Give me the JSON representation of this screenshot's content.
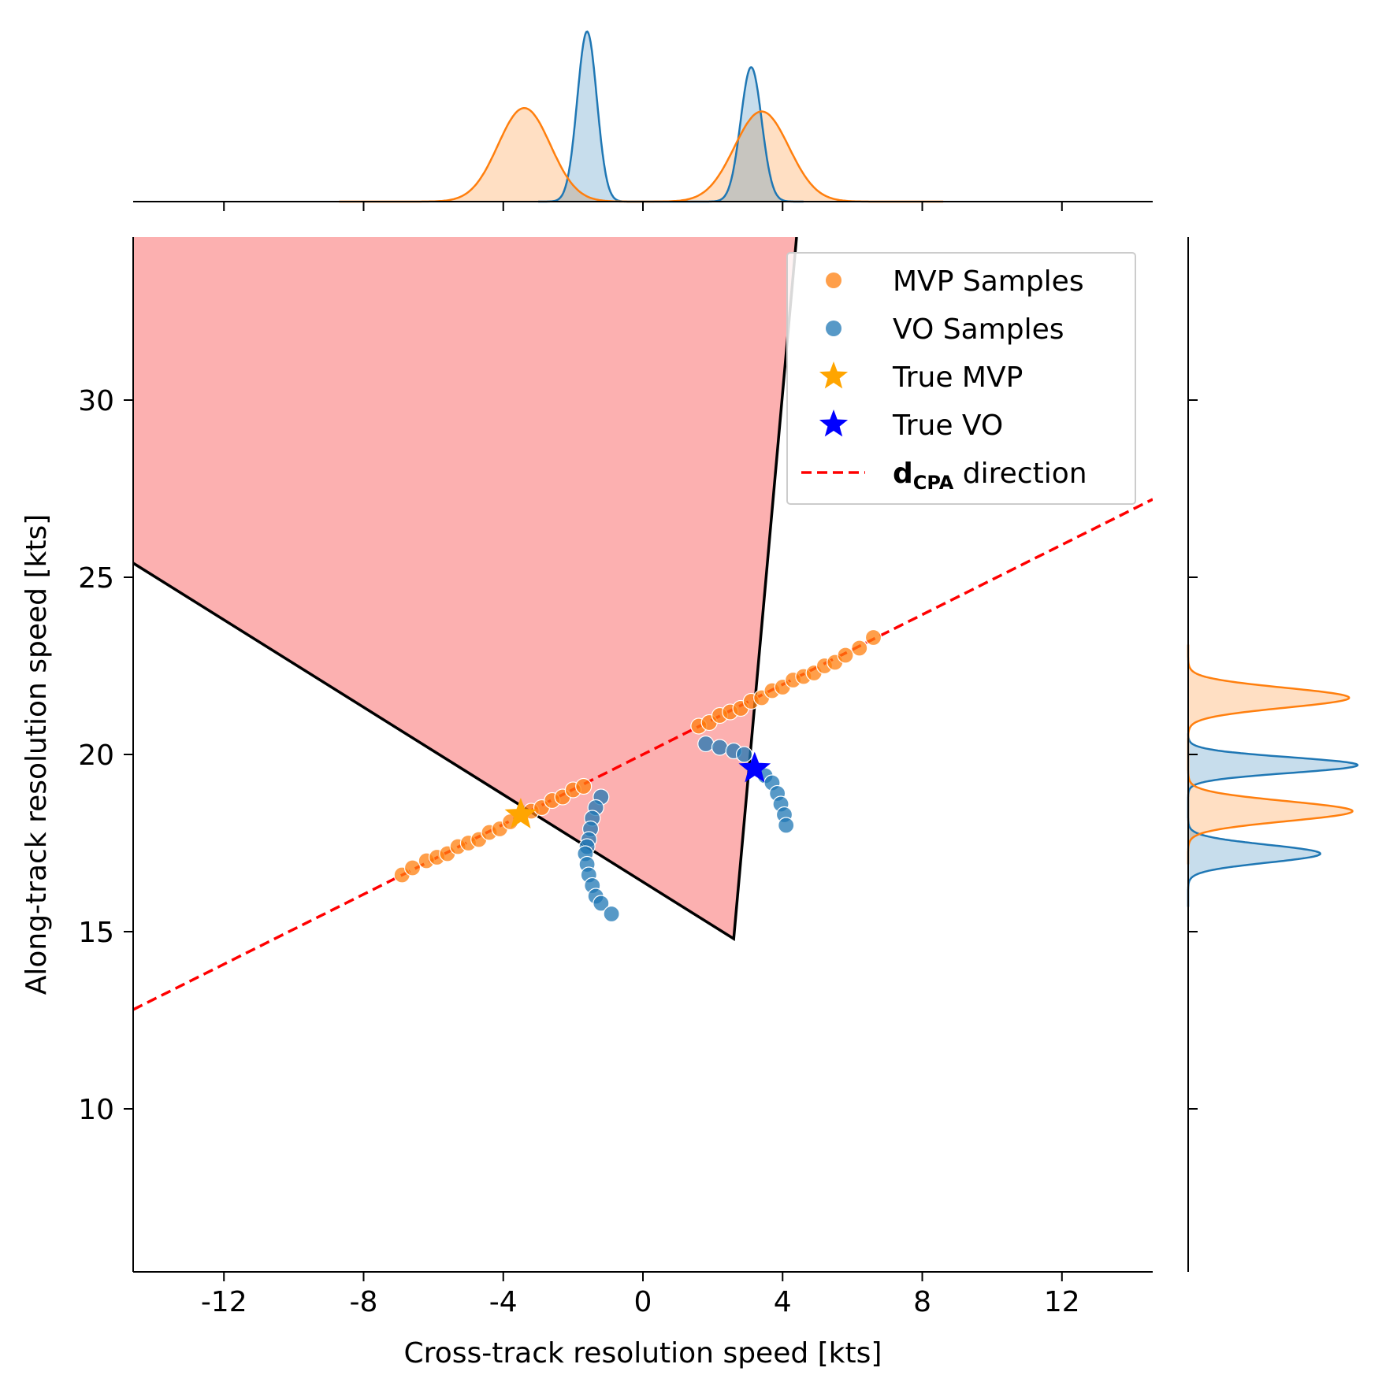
{
  "chart_data": {
    "type": "scatter",
    "title": "",
    "xlabel": "Cross-track resolution speed [kts]",
    "ylabel": "Along-track resolution speed [kts]",
    "xlim": [
      -14.6,
      14.6
    ],
    "ylim": [
      5.4,
      34.6
    ],
    "xticks": [
      -12,
      -8,
      -4,
      0,
      4,
      8,
      12
    ],
    "xtick_labels": [
      "-12",
      "-8",
      "-4",
      "0",
      "4",
      "8",
      "12"
    ],
    "yticks": [
      10,
      15,
      20,
      25,
      30
    ],
    "ytick_labels": [
      "10",
      "15",
      "20",
      "25",
      "30"
    ],
    "grid": false,
    "legend_position": "top-right",
    "legend": {
      "mvp_samples": "MVP Samples",
      "vo_samples": "VO Samples",
      "true_mvp": "True MVP",
      "true_vo": "True VO",
      "dcpa_main": "d",
      "dcpa_sub": "CPA",
      "dcpa_rest": " direction"
    },
    "colors": {
      "mvp": "#ff7f0e",
      "vo": "#1f77b4",
      "true_mvp": "#ffa500",
      "true_vo": "#0000ff",
      "dcpa_line": "#ff0000",
      "velocity_obstacle": "#fcb0b0",
      "boundary": "#000000"
    },
    "velocity_obstacle_polygon": [
      [
        -14.6,
        25.4
      ],
      [
        2.6,
        14.8
      ],
      [
        4.4,
        34.6
      ],
      [
        -14.6,
        34.6
      ]
    ],
    "dcpa_line": [
      [
        -14.6,
        12.8
      ],
      [
        14.6,
        27.2
      ]
    ],
    "true_mvp": [
      -3.5,
      18.3
    ],
    "true_vo": [
      3.2,
      19.6
    ],
    "series": [
      {
        "name": "MVP Samples",
        "points": [
          [
            -6.9,
            16.6
          ],
          [
            -6.6,
            16.8
          ],
          [
            -6.2,
            17.0
          ],
          [
            -5.9,
            17.1
          ],
          [
            -5.6,
            17.2
          ],
          [
            -5.3,
            17.4
          ],
          [
            -5.0,
            17.5
          ],
          [
            -4.7,
            17.6
          ],
          [
            -4.4,
            17.8
          ],
          [
            -4.1,
            17.9
          ],
          [
            -3.8,
            18.1
          ],
          [
            -3.2,
            18.4
          ],
          [
            -2.9,
            18.5
          ],
          [
            -2.6,
            18.7
          ],
          [
            -2.3,
            18.8
          ],
          [
            -2.0,
            19.0
          ],
          [
            -1.7,
            19.1
          ],
          [
            1.6,
            20.8
          ],
          [
            1.9,
            20.9
          ],
          [
            2.2,
            21.1
          ],
          [
            2.5,
            21.2
          ],
          [
            2.8,
            21.3
          ],
          [
            3.1,
            21.5
          ],
          [
            3.4,
            21.6
          ],
          [
            3.7,
            21.8
          ],
          [
            4.0,
            21.9
          ],
          [
            4.3,
            22.1
          ],
          [
            4.6,
            22.2
          ],
          [
            4.9,
            22.3
          ],
          [
            5.2,
            22.5
          ],
          [
            5.5,
            22.6
          ],
          [
            5.8,
            22.8
          ],
          [
            6.2,
            23.0
          ],
          [
            6.6,
            23.3
          ]
        ]
      },
      {
        "name": "VO Samples",
        "points": [
          [
            -1.2,
            18.8
          ],
          [
            -1.35,
            18.5
          ],
          [
            -1.45,
            18.2
          ],
          [
            -1.5,
            17.9
          ],
          [
            -1.55,
            17.6
          ],
          [
            -1.6,
            17.4
          ],
          [
            -1.65,
            17.2
          ],
          [
            -1.6,
            16.9
          ],
          [
            -1.55,
            16.6
          ],
          [
            -1.45,
            16.3
          ],
          [
            -1.35,
            16.0
          ],
          [
            -1.2,
            15.8
          ],
          [
            -0.9,
            15.5
          ],
          [
            1.8,
            20.3
          ],
          [
            2.2,
            20.2
          ],
          [
            2.6,
            20.1
          ],
          [
            2.9,
            20.0
          ],
          [
            3.5,
            19.4
          ],
          [
            3.7,
            19.2
          ],
          [
            3.85,
            18.9
          ],
          [
            3.95,
            18.6
          ],
          [
            4.05,
            18.3
          ],
          [
            4.1,
            18.0
          ]
        ]
      }
    ],
    "top_marginal": {
      "type": "kde",
      "orange": {
        "peaks": [
          {
            "mean": -3.4,
            "sd": 0.75,
            "height": 0.55
          },
          {
            "mean": 3.4,
            "sd": 0.78,
            "height": 0.53
          }
        ]
      },
      "blue": {
        "peaks": [
          {
            "mean": -1.6,
            "sd": 0.28,
            "height": 1.0
          },
          {
            "mean": 3.1,
            "sd": 0.3,
            "height": 0.79
          }
        ]
      }
    },
    "right_marginal": {
      "type": "kde",
      "orange": {
        "peaks": [
          {
            "mean": 21.6,
            "sd": 0.28,
            "height": 0.95
          },
          {
            "mean": 18.4,
            "sd": 0.28,
            "height": 0.97
          }
        ]
      },
      "blue": {
        "peaks": [
          {
            "mean": 19.7,
            "sd": 0.22,
            "height": 1.0
          },
          {
            "mean": 17.2,
            "sd": 0.25,
            "height": 0.78
          }
        ]
      }
    }
  }
}
